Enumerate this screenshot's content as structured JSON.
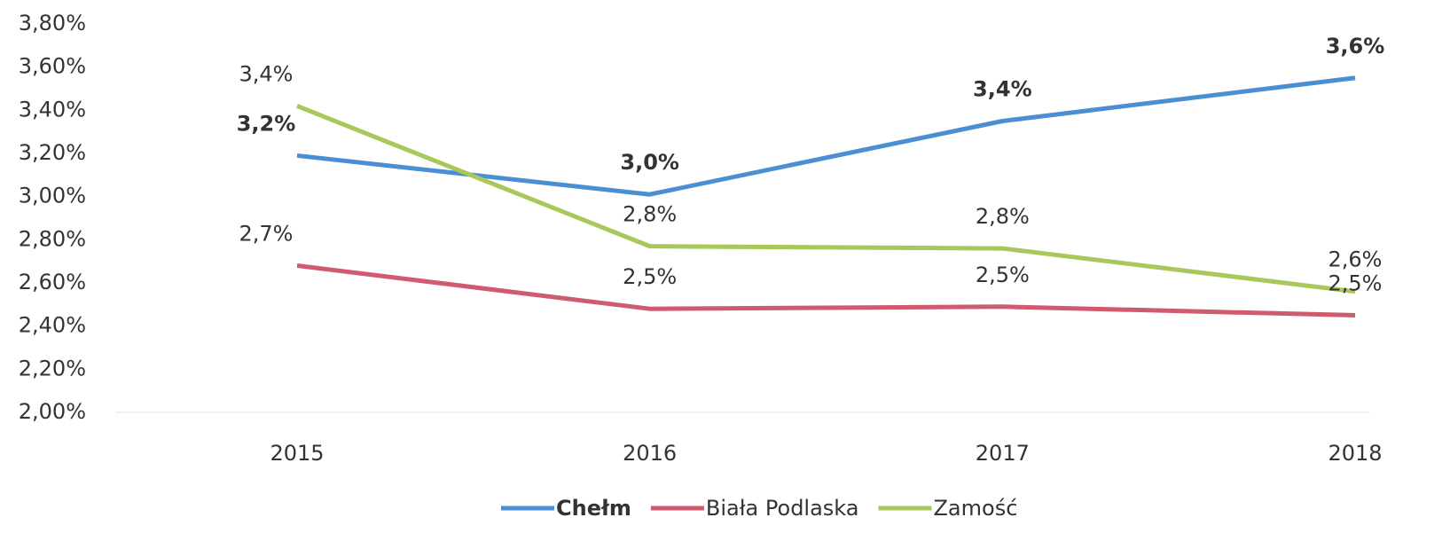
{
  "chart_data": {
    "type": "line",
    "categories": [
      "2015",
      "2016",
      "2017",
      "2018"
    ],
    "series": [
      {
        "name": "Chełm",
        "color": "#4a8fd2",
        "values": [
          3.19,
          3.01,
          3.35,
          3.55
        ],
        "value_labels": [
          "3,2%",
          "3,0%",
          "3,4%",
          "3,6%"
        ]
      },
      {
        "name": "Biała Podlaska",
        "color": "#d05a6e",
        "values": [
          2.68,
          2.48,
          2.49,
          2.45
        ],
        "value_labels": [
          "2,7%",
          "2,5%",
          "2,5%",
          "2,5%"
        ]
      },
      {
        "name": "Zamość",
        "color": "#a9c75b",
        "values": [
          3.42,
          2.77,
          2.76,
          2.56
        ],
        "value_labels": [
          "3,4%",
          "2,8%",
          "2,8%",
          "2,6%"
        ]
      }
    ],
    "ylim": [
      2.0,
      3.8
    ],
    "yticks": [
      {
        "value": 2.0,
        "label": "2,00%"
      },
      {
        "value": 2.2,
        "label": "2,20%"
      },
      {
        "value": 2.4,
        "label": "2,40%"
      },
      {
        "value": 2.6,
        "label": "2,60%"
      },
      {
        "value": 2.8,
        "label": "2,80%"
      },
      {
        "value": 3.0,
        "label": "3,00%"
      },
      {
        "value": 3.2,
        "label": "3,20%"
      },
      {
        "value": 3.4,
        "label": "3,40%"
      },
      {
        "value": 3.6,
        "label": "3,60%"
      },
      {
        "value": 3.8,
        "label": "3,80%"
      }
    ],
    "legend": "bottom"
  }
}
